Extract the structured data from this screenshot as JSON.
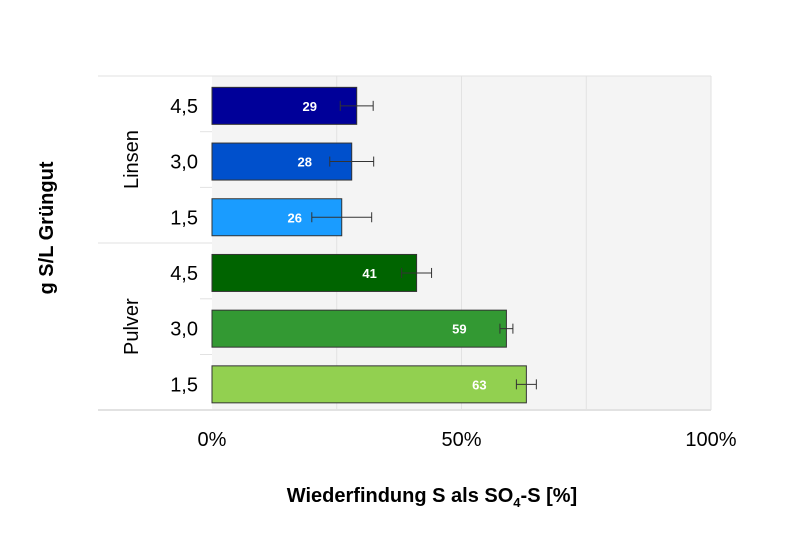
{
  "chart_data": {
    "type": "bar",
    "orientation": "horizontal",
    "xlabel": "Wiederfindung S als SO4-S [%]",
    "xlabel_main": "Wiederfindung S als SO",
    "xlabel_sub": "4",
    "xlabel_tail": "-S [%]",
    "ylabel": "g S/L Grüngut",
    "xlim": [
      0,
      100
    ],
    "x_ticks": [
      "0%",
      "50%",
      "100%"
    ],
    "grid": true,
    "groups": [
      {
        "name": "Linsen",
        "categories": [
          "4,5",
          "3,0",
          "1,5"
        ],
        "values": [
          29,
          28,
          26
        ],
        "errors": [
          3.3,
          4.4,
          6
        ],
        "colors": [
          "#000099",
          "#0050cc",
          "#1a9cff"
        ]
      },
      {
        "name": "Pulver",
        "categories": [
          "4,5",
          "3,0",
          "1,5"
        ],
        "values": [
          41,
          59,
          63
        ],
        "errors": [
          3,
          1.3,
          2
        ],
        "colors": [
          "#006400",
          "#339933",
          "#92d050"
        ]
      }
    ]
  }
}
